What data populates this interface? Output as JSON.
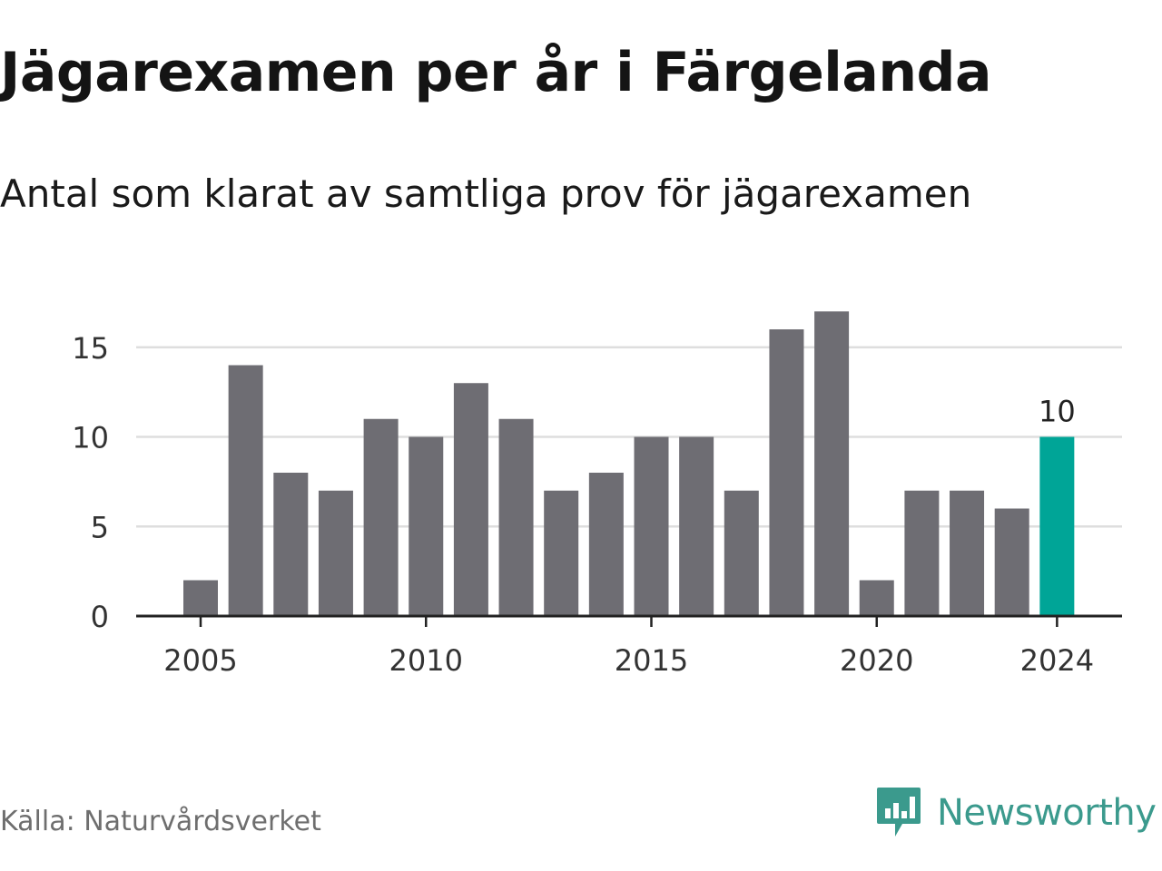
{
  "header": {
    "title": "Jägarexamen per år i Färgelanda",
    "subtitle": "Antal som klarat av samtliga prov för jägarexamen"
  },
  "footer": {
    "source": "Källa: Naturvårdsverket",
    "brand": "Newsworthy",
    "brand_icon": "chart-bubble-icon"
  },
  "colors": {
    "bar": "#6e6d73",
    "highlight": "#00a597",
    "grid": "#dedede",
    "axis": "#222222",
    "brand": "#3b9a8d"
  },
  "chart_data": {
    "type": "bar",
    "x": [
      2005,
      2006,
      2007,
      2008,
      2009,
      2010,
      2011,
      2012,
      2013,
      2014,
      2015,
      2016,
      2017,
      2018,
      2019,
      2020,
      2021,
      2022,
      2023,
      2024
    ],
    "values": [
      2,
      14,
      8,
      7,
      11,
      10,
      13,
      11,
      7,
      8,
      10,
      10,
      7,
      16,
      17,
      2,
      7,
      7,
      6,
      10
    ],
    "title": "Jägarexamen per år i Färgelanda",
    "subtitle": "Antal som klarat av samtliga prov för jägarexamen",
    "xlabel": "",
    "ylabel": "",
    "ylim": [
      0,
      17
    ],
    "yticks": [
      0,
      5,
      10,
      15
    ],
    "xticks": [
      2005,
      2010,
      2015,
      2020,
      2024
    ],
    "highlight": {
      "x": 2024,
      "label": "10"
    },
    "grid": true,
    "legend": "none"
  }
}
